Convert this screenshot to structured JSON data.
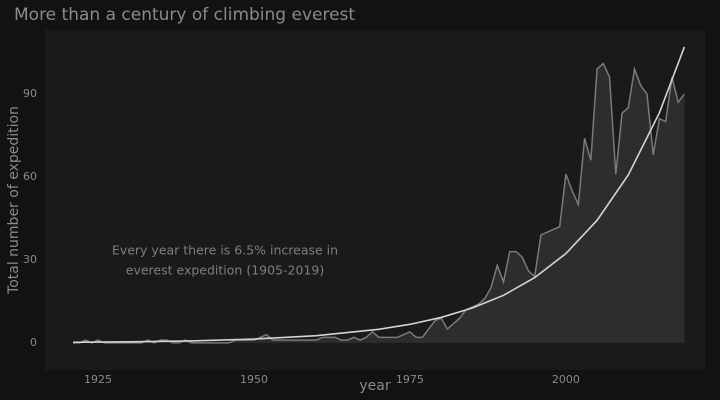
{
  "chart_data": {
    "type": "area",
    "title": "More than a century of climbing everest",
    "x_label": "year",
    "y_label": "Total number of expedition",
    "annotation": [
      "Every year there is 6.5% increase in",
      "everest expedition (1905-2019)"
    ],
    "x": [
      1921,
      1922,
      1923,
      1924,
      1925,
      1926,
      1927,
      1928,
      1929,
      1930,
      1931,
      1932,
      1933,
      1934,
      1935,
      1936,
      1937,
      1938,
      1939,
      1940,
      1941,
      1942,
      1943,
      1944,
      1945,
      1946,
      1947,
      1948,
      1949,
      1950,
      1951,
      1952,
      1953,
      1954,
      1955,
      1956,
      1957,
      1958,
      1959,
      1960,
      1961,
      1962,
      1963,
      1964,
      1965,
      1966,
      1967,
      1968,
      1969,
      1970,
      1971,
      1972,
      1973,
      1974,
      1975,
      1976,
      1977,
      1978,
      1979,
      1980,
      1981,
      1982,
      1983,
      1984,
      1985,
      1986,
      1987,
      1988,
      1989,
      1990,
      1991,
      1992,
      1993,
      1994,
      1995,
      1996,
      1997,
      1998,
      1999,
      2000,
      2001,
      2002,
      2003,
      2004,
      2005,
      2006,
      2007,
      2008,
      2009,
      2010,
      2011,
      2012,
      2013,
      2014,
      2015,
      2016,
      2017,
      2018,
      2019
    ],
    "series": [
      {
        "color": "#7a7a7a",
        "fill": "#2d2d2d",
        "values": [
          0,
          0,
          1,
          0,
          1,
          0,
          0,
          0,
          0,
          0,
          0,
          0,
          1,
          0,
          1,
          1,
          0,
          0,
          1,
          0,
          0,
          0,
          0,
          0,
          0,
          0,
          1,
          1,
          1,
          1,
          2,
          3,
          1,
          1,
          1,
          1,
          1,
          1,
          1,
          1,
          2,
          2,
          2,
          1,
          1,
          2,
          1,
          2,
          4,
          2,
          2,
          2,
          2,
          3,
          4,
          2,
          2,
          5,
          8,
          9,
          5,
          7,
          9,
          12,
          13,
          14,
          16,
          20,
          28,
          22,
          33,
          33,
          31,
          26,
          24,
          39,
          40,
          41,
          42,
          61,
          55,
          50,
          74,
          66,
          99,
          101,
          96,
          61,
          83,
          85,
          99,
          93,
          90,
          68,
          81,
          80,
          96,
          87,
          90
        ]
      },
      {
        "type": "line",
        "color": "#d4d4d4",
        "x": [
          1921,
          1930,
          1940,
          1950,
          1960,
          1970,
          1975,
          1980,
          1985,
          1990,
          1995,
          2000,
          2005,
          2010,
          2015,
          2019
        ],
        "values": [
          0.2,
          0.4,
          0.7,
          1.4,
          2.6,
          4.9,
          6.7,
          9.2,
          12.6,
          17.2,
          23.6,
          32.3,
          44.3,
          60.7,
          83.2,
          107
        ]
      }
    ],
    "xlim": [
      1916.5,
      2022.3
    ],
    "ylim": [
      -9.8,
      113.1
    ],
    "xticks": [
      1925,
      1950,
      1975,
      2000
    ],
    "yticks": [
      0,
      30,
      60,
      90
    ],
    "grid": false
  }
}
